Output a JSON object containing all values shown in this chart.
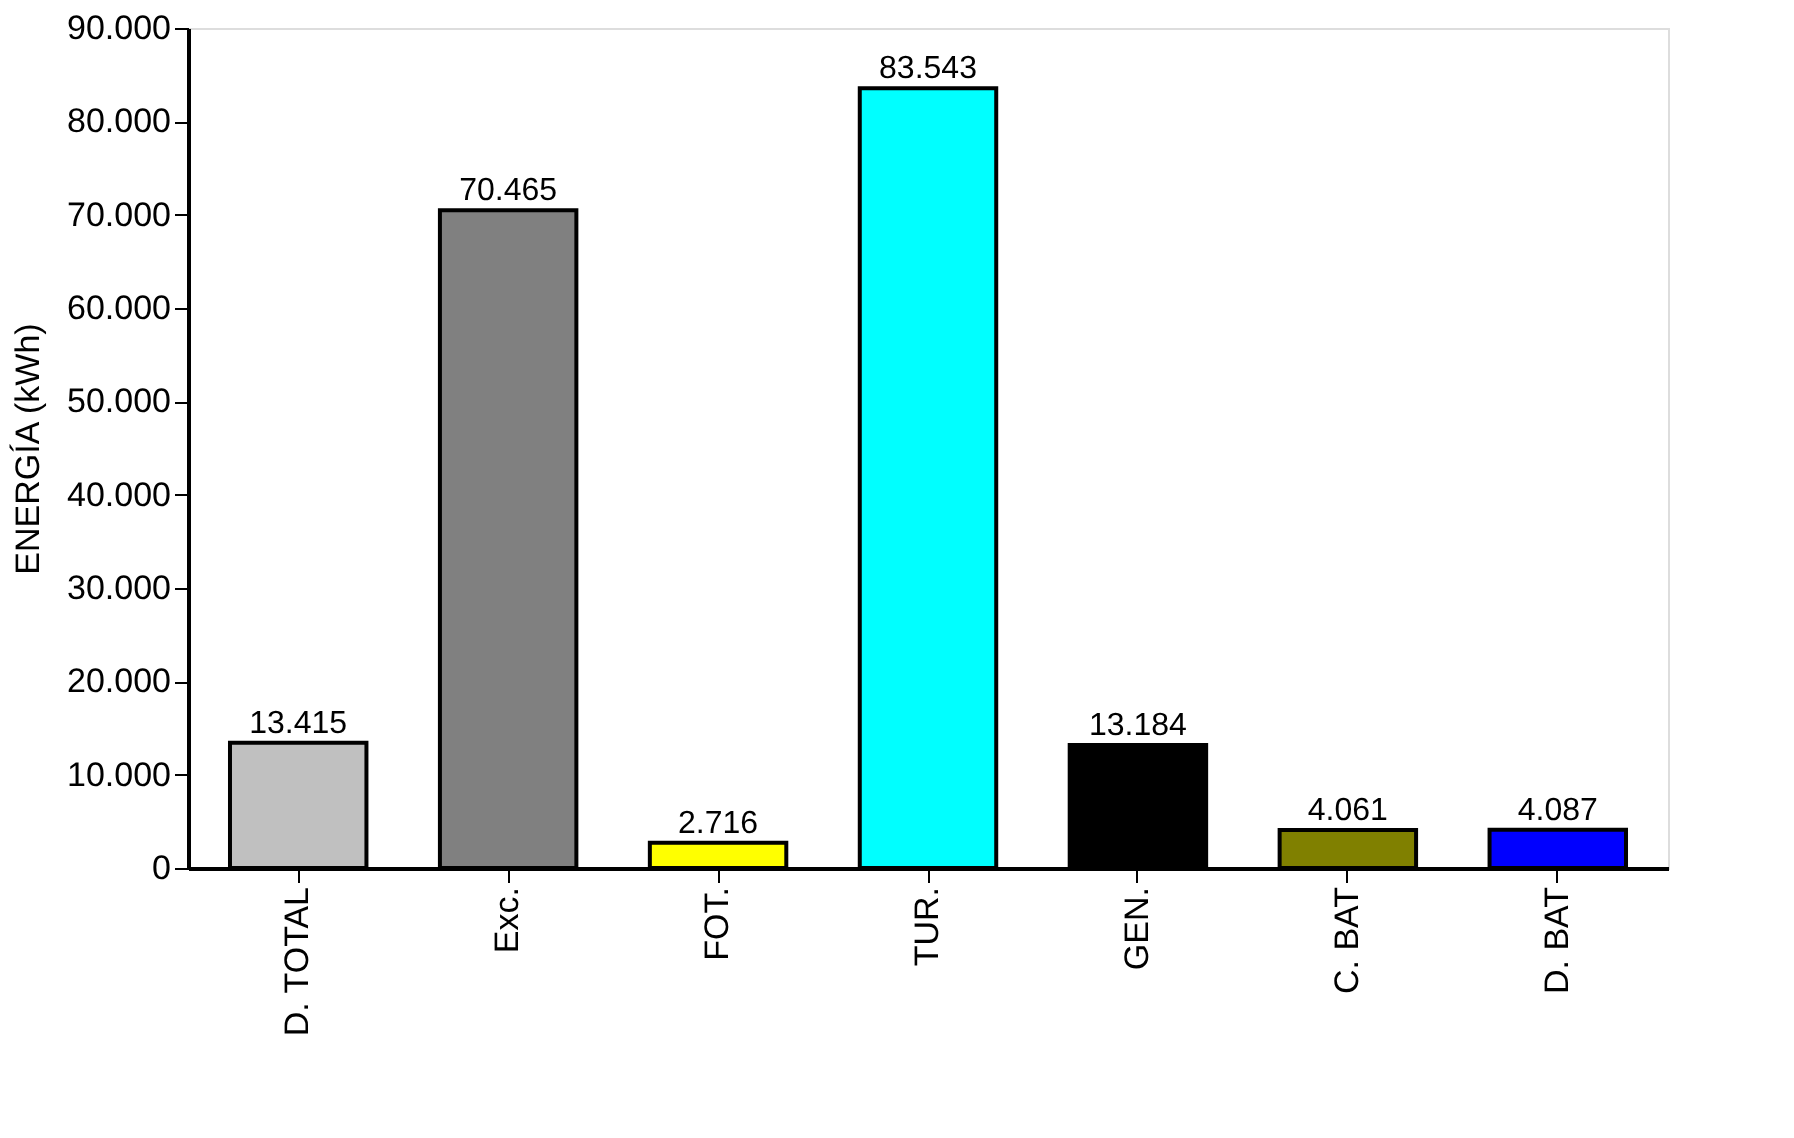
{
  "chart_data": {
    "type": "bar",
    "ylabel": "ENERGÍA (kWh)",
    "categories": [
      "D. TOTAL",
      "Exc.",
      "FOT.",
      "TUR.",
      "GEN.",
      "C. BAT",
      "D. BAT"
    ],
    "values": [
      13415,
      70465,
      2716,
      83543,
      13184,
      4061,
      4087
    ],
    "value_labels": [
      "13.415",
      "70.465",
      "2.716",
      "83.543",
      "13.184",
      "4.061",
      "4.087"
    ],
    "colors": [
      "#c0c0c0",
      "#808080",
      "#ffff00",
      "#00ffff",
      "#000000",
      "#808000",
      "#0000ff"
    ],
    "ylim": [
      0,
      90000
    ],
    "yticks": [
      {
        "value": 0,
        "label": "0"
      },
      {
        "value": 10000,
        "label": "10.000"
      },
      {
        "value": 20000,
        "label": "20.000"
      },
      {
        "value": 30000,
        "label": "30.000"
      },
      {
        "value": 40000,
        "label": "40.000"
      },
      {
        "value": 50000,
        "label": "50.000"
      },
      {
        "value": 60000,
        "label": "60.000"
      },
      {
        "value": 70000,
        "label": "70.000"
      },
      {
        "value": 80000,
        "label": "80.000"
      },
      {
        "value": 90000,
        "label": "90.000"
      }
    ],
    "grid": false,
    "legend": false
  }
}
